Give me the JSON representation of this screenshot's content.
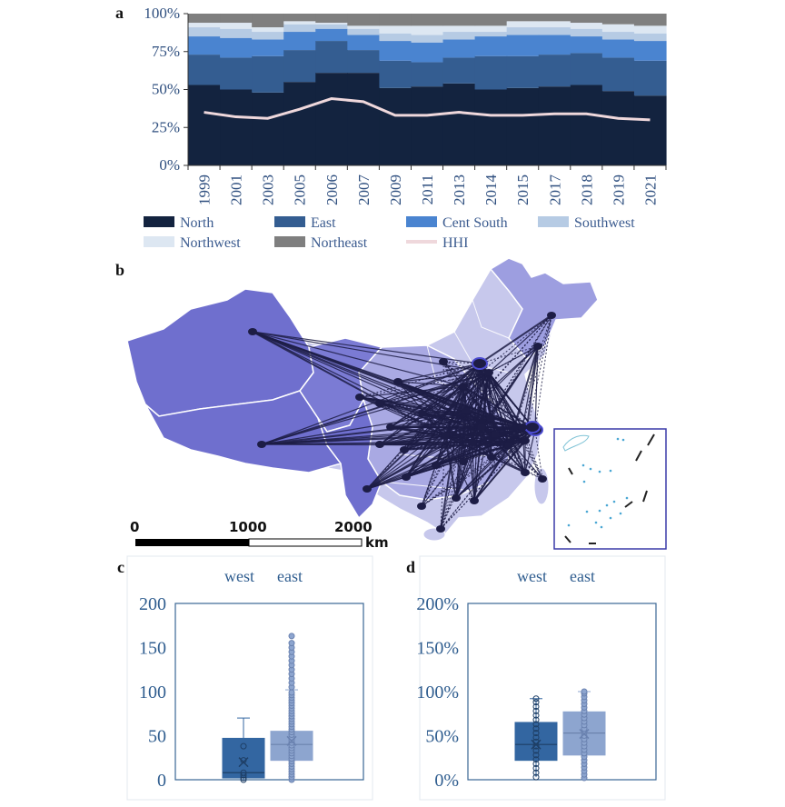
{
  "panels": {
    "a": "a",
    "b": "b",
    "c": "c",
    "d": "d"
  },
  "chart_data": [
    {
      "type": "area",
      "panel": "a",
      "stacked": true,
      "normalized": true,
      "categories": [
        "1999",
        "2001",
        "2003",
        "2005",
        "2006",
        "2007",
        "2009",
        "2011",
        "2013",
        "2014",
        "2015",
        "2017",
        "2018",
        "2019",
        "2021"
      ],
      "series": [
        {
          "name": "North",
          "color": "#13233f",
          "values": [
            53,
            50,
            48,
            55,
            61,
            61,
            51,
            52,
            54,
            50,
            51,
            52,
            53,
            49,
            46
          ]
        },
        {
          "name": "East",
          "color": "#345d91",
          "values": [
            20,
            21,
            24,
            21,
            21,
            15,
            18,
            16,
            17,
            22,
            21,
            21,
            21,
            22,
            23
          ]
        },
        {
          "name": "Cent South",
          "color": "#4a84d0",
          "values": [
            12,
            13,
            11,
            12,
            8,
            10,
            13,
            13,
            12,
            13,
            14,
            13,
            11,
            12,
            13
          ]
        },
        {
          "name": "Southwest",
          "color": "#b6cbe4",
          "values": [
            6,
            6,
            5,
            5,
            3,
            4,
            5,
            5,
            5,
            3,
            5,
            5,
            5,
            5,
            5
          ]
        },
        {
          "name": "Northwest",
          "color": "#dde7f2",
          "values": [
            3,
            4,
            3,
            2,
            1,
            2,
            5,
            6,
            4,
            4,
            4,
            4,
            4,
            5,
            5
          ]
        },
        {
          "name": "Northeast",
          "color": "#7f7f7f",
          "values": [
            6,
            6,
            9,
            5,
            6,
            8,
            8,
            8,
            8,
            8,
            5,
            5,
            6,
            7,
            8
          ]
        }
      ],
      "line": {
        "name": "HHI",
        "color": "#efd8dc",
        "values": [
          35,
          32,
          31,
          37,
          44,
          42,
          33,
          33,
          35,
          33,
          33,
          34,
          34,
          31,
          30
        ]
      },
      "y_ticks": [
        "0%",
        "25%",
        "50%",
        "75%",
        "100%"
      ],
      "ylim": [
        0,
        100
      ]
    },
    {
      "type": "box",
      "panel": "c",
      "legend": [
        "west",
        "east"
      ],
      "y_ticks": [
        "0",
        "50",
        "100",
        "150",
        "200"
      ],
      "ylim": [
        0,
        200
      ],
      "groups": [
        {
          "name": "west",
          "color": "#3366a1",
          "min": 0,
          "q1": 2,
          "median": 8,
          "q3": 47,
          "max": 70,
          "mean": 20,
          "points": [
            0,
            2,
            5,
            8,
            22,
            38
          ]
        },
        {
          "name": "east",
          "color": "#8da5cf",
          "min": 0,
          "q1": 22,
          "median": 40,
          "q3": 55,
          "max": 102,
          "mean": 44,
          "points": [
            0,
            3,
            6,
            9,
            12,
            15,
            18,
            21,
            24,
            27,
            30,
            33,
            36,
            39,
            42,
            45,
            48,
            51,
            54,
            57,
            60,
            63,
            66,
            69,
            72,
            75,
            78,
            81,
            84,
            87,
            90,
            93,
            96,
            99,
            105,
            110,
            115,
            120,
            125,
            130,
            135,
            140,
            145,
            150,
            155,
            163
          ]
        }
      ]
    },
    {
      "type": "box",
      "panel": "d",
      "legend": [
        "west",
        "east"
      ],
      "y_ticks": [
        "0%",
        "50%",
        "100%",
        "150%",
        "200%"
      ],
      "ylim": [
        0,
        200
      ],
      "groups": [
        {
          "name": "west",
          "color": "#3366a1",
          "min": 3,
          "q1": 22,
          "median": 40,
          "q3": 65,
          "max": 92,
          "mean": 40,
          "points": [
            3,
            8,
            13,
            18,
            23,
            28,
            33,
            38,
            43,
            48,
            53,
            58,
            63,
            68,
            73,
            78,
            83,
            88,
            92
          ]
        },
        {
          "name": "east",
          "color": "#8da5cf",
          "min": 2,
          "q1": 28,
          "median": 53,
          "q3": 77,
          "max": 100,
          "mean": 52,
          "points": [
            2,
            6,
            10,
            14,
            18,
            22,
            26,
            30,
            34,
            38,
            42,
            46,
            50,
            54,
            58,
            62,
            66,
            70,
            74,
            78,
            82,
            86,
            90,
            94,
            98,
            100
          ]
        }
      ]
    }
  ],
  "map": {
    "scale_labels": [
      "0",
      "1000",
      "2000",
      "km"
    ],
    "region_colors": {
      "west": "#6f6fce",
      "central": "#a9a9e3",
      "east": "#c7c8ec",
      "northeast": "#9d9ee0"
    },
    "edge_color": "#1d1d45"
  }
}
